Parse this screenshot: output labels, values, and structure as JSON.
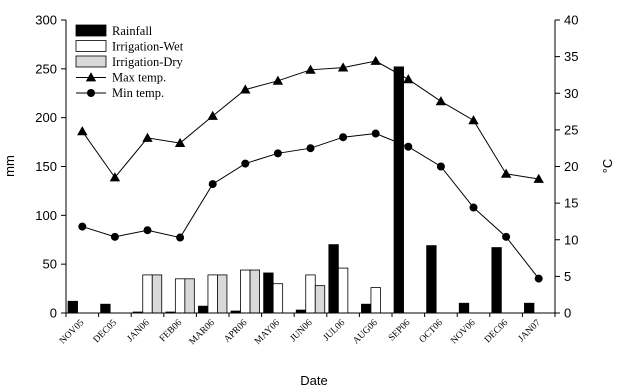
{
  "chart_data": {
    "type": "bar",
    "categories": [
      "NOV05",
      "DEC05",
      "JAN06",
      "FEB06",
      "MAR06",
      "APR06",
      "MAY06",
      "JUN06",
      "JUL06",
      "AUG06",
      "SEP06",
      "OCT06",
      "NOV06",
      "DEC06",
      "JAN07"
    ],
    "xlabel": "Date",
    "ylabel": "mm",
    "ylabel_right": "°C",
    "ylim": [
      0,
      300
    ],
    "yticks": [
      0,
      50,
      100,
      150,
      200,
      250,
      300
    ],
    "ylim_right": [
      0,
      40
    ],
    "yticks_right": [
      0,
      5,
      10,
      15,
      20,
      25,
      30,
      35,
      40
    ],
    "legend_position": "top-left",
    "series": [
      {
        "name": "Rainfall",
        "kind": "bar",
        "axis": "left",
        "fill": "#000000",
        "values": [
          12,
          9,
          1,
          1,
          7,
          2,
          41,
          3,
          70,
          9,
          252,
          69,
          10,
          67,
          10
        ]
      },
      {
        "name": "Irrigation-Wet",
        "kind": "bar",
        "axis": "left",
        "fill": "#ffffff",
        "values": [
          0,
          0,
          39,
          35,
          39,
          44,
          30,
          39,
          46,
          26,
          0,
          0,
          0,
          0,
          0
        ]
      },
      {
        "name": "Irrigation-Dry",
        "kind": "bar",
        "axis": "left",
        "fill": "#d9d9d9",
        "values": [
          0,
          0,
          39,
          35,
          39,
          44,
          0,
          28,
          0,
          0,
          0,
          0,
          0,
          0,
          0
        ]
      },
      {
        "name": "Max temp.",
        "kind": "line",
        "axis": "right",
        "marker": "triangle",
        "values": [
          24.8,
          18.5,
          23.9,
          23.2,
          26.9,
          30.5,
          31.7,
          33.2,
          33.5,
          34.4,
          31.9,
          28.9,
          26.3,
          19.0,
          18.3
        ]
      },
      {
        "name": "Min temp.",
        "kind": "line",
        "axis": "right",
        "marker": "circle",
        "values": [
          11.8,
          10.4,
          11.3,
          10.3,
          17.6,
          20.4,
          21.8,
          22.5,
          24.0,
          24.5,
          22.7,
          20.0,
          14.4,
          10.4,
          4.7
        ]
      }
    ]
  }
}
